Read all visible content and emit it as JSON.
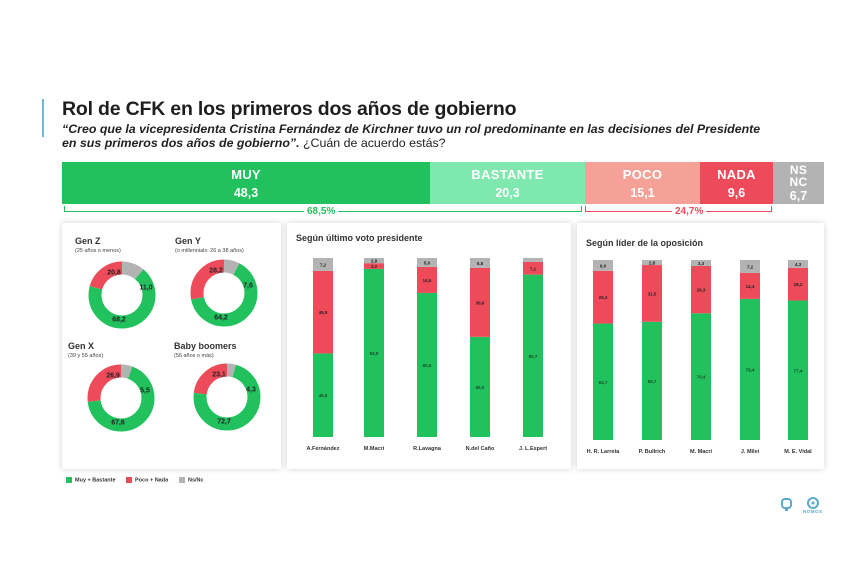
{
  "header": {
    "title": "Rol de CFK en los primeros dos años de gobierno",
    "subtitle_quote": "“Creo que la vicepresidenta Cristina Fernández de Kirchner tuvo un rol predominante en las decisiones del Presidente en sus primeros dos años de gobierno”.",
    "subtitle_question": " ¿Cuán de acuerdo estás?"
  },
  "colors": {
    "muy": "#21c25e",
    "bastante": "#7ee8ae",
    "poco": "#f5a198",
    "nada": "#ee4b5a",
    "nsnc": "#b3b3b3",
    "accent": "#6fb7d4"
  },
  "top_bar": {
    "segments": [
      {
        "label": "MUY",
        "value": "48,3",
        "share": 48.3,
        "color": "#21c25e"
      },
      {
        "label": "BASTANTE",
        "value": "20,3",
        "share": 20.3,
        "color": "#7ee8ae"
      },
      {
        "label": "POCO",
        "value": "15,1",
        "share": 15.1,
        "color": "#f5a198"
      },
      {
        "label": "NADA",
        "value": "9,6",
        "share": 9.6,
        "color": "#ee4b5a"
      },
      {
        "label": "NS NC",
        "value": "6,7",
        "share": 6.7,
        "color": "#b3b3b3"
      }
    ],
    "agree_total": "68,5%",
    "disagree_total": "24,7%"
  },
  "generations": [
    {
      "title": "Gen Z",
      "subtitle": "(25 años o menos)",
      "agree": 68.2,
      "disagree": 20.8,
      "nsnc": 11.0,
      "labels": [
        "68,2",
        "20,8",
        "11,0"
      ]
    },
    {
      "title": "Gen Y",
      "subtitle": "(o millennials: 26 a 38 años)",
      "agree": 64.2,
      "disagree": 28.2,
      "nsnc": 7.6,
      "labels": [
        "64,2",
        "28,2",
        "7,6"
      ]
    },
    {
      "title": "Gen X",
      "subtitle": "(39 y 55 años)",
      "agree": 67.6,
      "disagree": 26.9,
      "nsnc": 5.5,
      "labels": [
        "67,6",
        "26,9",
        "5,5"
      ]
    },
    {
      "title": "Baby boomers",
      "subtitle": "(56 años o más)",
      "agree": 72.7,
      "disagree": 23.1,
      "nsnc": 4.3,
      "labels": [
        "72,7",
        "23,1",
        "4,3"
      ]
    }
  ],
  "chart_data": [
    {
      "type": "bar",
      "stacked": true,
      "title": "Según último voto presidente",
      "categories": [
        "A.Fernández",
        "M.Macri",
        "R.Lavagna",
        "N.del Caño",
        "J. L.Espert"
      ],
      "series": [
        {
          "name": "Muy + Bastante",
          "values": [
            46.5,
            93.9,
            80.5,
            56.0,
            90.7
          ],
          "labels": [
            "46,5",
            "93,9",
            "80,5",
            "56,0",
            "90,7"
          ]
        },
        {
          "name": "Poco + Nada",
          "values": [
            45.9,
            3.2,
            14.5,
            38.6,
            7.1
          ],
          "labels": [
            "45,9",
            "3,2",
            "14,5",
            "38,6",
            "7,1"
          ]
        },
        {
          "name": "Ns/Nc",
          "values": [
            7.2,
            2.9,
            5.0,
            5.5,
            2.2
          ],
          "labels": [
            "7,2",
            "2,9",
            "5,0",
            "5,5",
            ""
          ]
        }
      ]
    },
    {
      "type": "bar",
      "stacked": true,
      "title": "Según líder de la oposición",
      "categories": [
        "H. R. Larreta",
        "P. Bullrich",
        "M. Macri",
        "J. Milei",
        "M. E. Vidal"
      ],
      "series": [
        {
          "name": "Muy + Bastante",
          "values": [
            64.7,
            65.7,
            70.4,
            78.4,
            77.4
          ],
          "labels": [
            "64,7",
            "65,7",
            "70,4",
            "78,4",
            "77,4"
          ]
        },
        {
          "name": "Poco + Nada",
          "values": [
            29.3,
            31.5,
            26.3,
            14.4,
            18.2
          ],
          "labels": [
            "29,3",
            "31,5",
            "26,3",
            "14,4",
            "18,2"
          ]
        },
        {
          "name": "Ns/Nc",
          "values": [
            6.0,
            2.8,
            3.3,
            7.2,
            4.3
          ],
          "labels": [
            "6,0",
            "2,8",
            "3,3",
            "7,2",
            "4,3"
          ]
        }
      ]
    }
  ],
  "legend": [
    {
      "label": "Muy + Bastante",
      "color": "#21c25e"
    },
    {
      "label": "Poco + Nada",
      "color": "#ee4b5a"
    },
    {
      "label": "Ns/Nc",
      "color": "#b3b3b3"
    }
  ],
  "logos": [
    {
      "icon": "q-logo-icon"
    },
    {
      "icon": "nomos-logo-icon",
      "label": "NOMOS"
    }
  ]
}
